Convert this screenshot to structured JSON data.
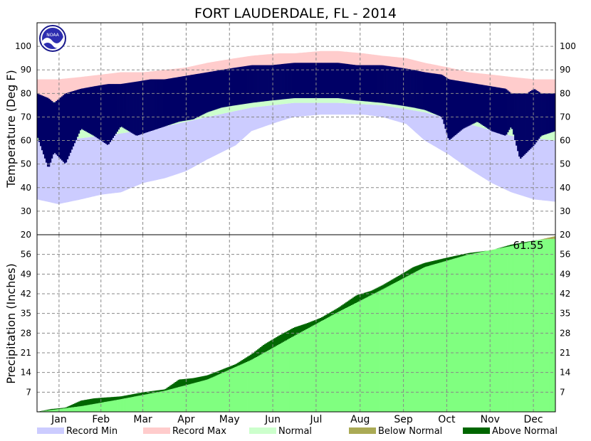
{
  "chart_data": [
    {
      "type": "bar",
      "title": "FORT LAUDERDALE, FL - 2014",
      "ylabel": "Temperature (Deg F)",
      "ylim": [
        20,
        110
      ],
      "yticks": [
        20,
        30,
        40,
        50,
        60,
        70,
        80,
        90,
        100
      ],
      "xlim": [
        0,
        365
      ],
      "grid": true,
      "months": [
        {
          "label": "Jan",
          "start_day": 0
        },
        {
          "label": "Feb",
          "start_day": 31
        },
        {
          "label": "Mar",
          "start_day": 59
        },
        {
          "label": "Apr",
          "start_day": 90
        },
        {
          "label": "May",
          "start_day": 120
        },
        {
          "label": "Jun",
          "start_day": 151
        },
        {
          "label": "Jul",
          "start_day": 181
        },
        {
          "label": "Aug",
          "start_day": 212
        },
        {
          "label": "Sep",
          "start_day": 243
        },
        {
          "label": "Oct",
          "start_day": 273
        },
        {
          "label": "Nov",
          "start_day": 304
        },
        {
          "label": "Dec",
          "start_day": 334
        }
      ],
      "series": [
        {
          "name": "Record Min",
          "role": "record_min",
          "color": "#ccccff",
          "x": [
            0,
            15,
            31,
            45,
            59,
            75,
            90,
            105,
            120,
            140,
            151,
            170,
            181,
            200,
            212,
            230,
            243,
            260,
            273,
            290,
            304,
            320,
            334,
            350,
            365
          ],
          "values": [
            35,
            33,
            35,
            37,
            38,
            42,
            44,
            47,
            52,
            58,
            64,
            68,
            70,
            71,
            71,
            71,
            70,
            67,
            60,
            54,
            48,
            42,
            38,
            35,
            34
          ]
        },
        {
          "name": "Record Max",
          "role": "record_max",
          "color": "#ffcccc",
          "x": [
            0,
            15,
            31,
            45,
            59,
            75,
            90,
            105,
            120,
            140,
            151,
            170,
            181,
            200,
            212,
            230,
            243,
            260,
            273,
            290,
            304,
            320,
            334,
            350,
            365
          ],
          "values": [
            86,
            86,
            87,
            88,
            89,
            89,
            90,
            91,
            93,
            95,
            96,
            97,
            97,
            98,
            98,
            97,
            96,
            95,
            93,
            91,
            89,
            88,
            87,
            86,
            86
          ]
        },
        {
          "name": "Normal",
          "role": "normal_range",
          "color": "#ccffcc",
          "x": [
            0,
            31,
            59,
            90,
            120,
            151,
            181,
            212,
            243,
            273,
            304,
            334,
            365
          ],
          "low": [
            60,
            61,
            63,
            66,
            70,
            74,
            76,
            76,
            75,
            72,
            67,
            62,
            60
          ],
          "high": [
            76,
            77,
            79,
            82,
            86,
            88,
            90,
            90,
            89,
            86,
            82,
            78,
            76
          ]
        },
        {
          "name": "Observed",
          "role": "observed_range",
          "color": "#000066",
          "x": [
            0,
            8,
            12,
            20,
            31,
            40,
            50,
            59,
            70,
            80,
            90,
            100,
            110,
            120,
            130,
            140,
            151,
            165,
            181,
            195,
            212,
            225,
            243,
            255,
            265,
            273,
            285,
            290,
            300,
            310,
            320,
            330,
            334,
            340,
            345,
            350,
            355,
            365
          ],
          "low": [
            62,
            48,
            55,
            50,
            65,
            62,
            58,
            66,
            62,
            64,
            66,
            68,
            69,
            72,
            74,
            75,
            76,
            77,
            78,
            78,
            78,
            77,
            76,
            75,
            74,
            73,
            70,
            60,
            65,
            68,
            64,
            62,
            66,
            52,
            55,
            58,
            62,
            64
          ],
          "high": [
            80,
            78,
            76,
            80,
            82,
            83,
            84,
            84,
            85,
            86,
            86,
            87,
            88,
            89,
            90,
            91,
            92,
            92,
            93,
            93,
            93,
            92,
            92,
            91,
            90,
            89,
            88,
            86,
            85,
            84,
            83,
            82,
            80,
            80,
            80,
            82,
            80,
            80
          ]
        }
      ]
    },
    {
      "type": "area",
      "ylabel": "Precipitation (Inches)",
      "ylim": [
        0,
        63
      ],
      "yticks": [
        7,
        14,
        21,
        28,
        35,
        42,
        49,
        56
      ],
      "grid": true,
      "annotation": "61.55",
      "series": [
        {
          "name": "Normal",
          "role": "normal_cumulative",
          "color": "#80ff80",
          "x": [
            0,
            31,
            59,
            90,
            120,
            151,
            181,
            212,
            243,
            273,
            304,
            334,
            365
          ],
          "values": [
            0,
            2.0,
            4.5,
            7.5,
            11.5,
            18.5,
            27.0,
            35.5,
            43.5,
            51.5,
            56.0,
            59.0,
            62.5
          ]
        },
        {
          "name": "Observed",
          "role": "observed_cumulative",
          "x": [
            0,
            10,
            20,
            31,
            40,
            59,
            75,
            90,
            100,
            110,
            120,
            130,
            140,
            151,
            160,
            170,
            181,
            190,
            200,
            212,
            225,
            235,
            243,
            255,
            265,
            273,
            290,
            304,
            320,
            334,
            345,
            355,
            365
          ],
          "values": [
            0,
            1.0,
            1.5,
            4.0,
            4.8,
            5.5,
            7.0,
            8.0,
            11.5,
            12.0,
            13.0,
            15.0,
            17.0,
            20.5,
            24.0,
            27.0,
            30.0,
            31.5,
            33.5,
            37.0,
            41.5,
            43.0,
            45.0,
            48.5,
            51.5,
            53.0,
            55.0,
            56.5,
            57.5,
            59.5,
            60.5,
            61.3,
            61.55
          ]
        }
      ]
    }
  ],
  "legend": [
    {
      "label": "Record Min",
      "color": "#ccccff"
    },
    {
      "label": "Record Max",
      "color": "#ffcccc"
    },
    {
      "label": "Normal",
      "color": "#ccffcc"
    },
    {
      "label": "Below Normal",
      "color": "#aaaa55"
    },
    {
      "label": "Above Normal",
      "color": "#006600"
    }
  ],
  "logo": {
    "text": "NOAA"
  },
  "colors": {
    "observed_temp": "#000066",
    "normal_precip": "#80ff80",
    "above_normal": "#006600",
    "below_normal": "#aaaa55"
  }
}
